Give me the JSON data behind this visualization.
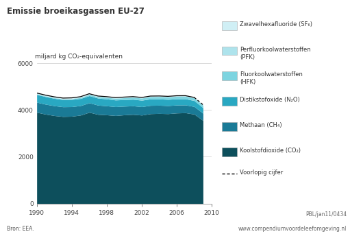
{
  "title": "Emissie broeikasgassen EU-27",
  "ylabel": "miljard kg CO₂-equivalenten",
  "source": "Bron: EEA.",
  "reference": "PBL/jan11/0434",
  "website": "www.compendiumvoordeleefomgeving.nl",
  "years": [
    1990,
    1991,
    1992,
    1993,
    1994,
    1995,
    1996,
    1997,
    1998,
    1999,
    2000,
    2001,
    2002,
    2003,
    2004,
    2005,
    2006,
    2007,
    2008,
    2009
  ],
  "CO2": [
    3900,
    3820,
    3760,
    3720,
    3730,
    3780,
    3900,
    3810,
    3790,
    3760,
    3790,
    3810,
    3780,
    3840,
    3850,
    3840,
    3870,
    3880,
    3820,
    3550
  ],
  "CH4": [
    430,
    425,
    420,
    415,
    410,
    405,
    405,
    395,
    385,
    380,
    370,
    365,
    360,
    355,
    350,
    345,
    340,
    335,
    325,
    310
  ],
  "N2O": [
    330,
    325,
    315,
    305,
    305,
    305,
    305,
    300,
    295,
    285,
    280,
    280,
    275,
    275,
    270,
    265,
    265,
    260,
    255,
    235
  ],
  "HFK": [
    20,
    22,
    26,
    30,
    35,
    42,
    50,
    58,
    67,
    75,
    82,
    88,
    93,
    98,
    103,
    107,
    110,
    112,
    112,
    108
  ],
  "PFK": [
    25,
    24,
    23,
    22,
    21,
    20,
    19,
    18,
    17,
    16,
    16,
    15,
    15,
    14,
    14,
    14,
    13,
    13,
    13,
    12
  ],
  "SF6": [
    20,
    19,
    18,
    17,
    17,
    16,
    16,
    15,
    15,
    14,
    14,
    13,
    13,
    13,
    12,
    12,
    11,
    11,
    11,
    10
  ],
  "colors": {
    "CO2": "#0d4f5c",
    "CH4": "#1a7a96",
    "N2O": "#29a8c2",
    "HFK": "#7dd4e0",
    "PFK": "#aee3ec",
    "SF6": "#d0eff5"
  },
  "ylim": [
    0,
    6000
  ],
  "yticks": [
    0,
    2000,
    4000,
    6000
  ],
  "xticks": [
    1990,
    1994,
    1998,
    2002,
    2006,
    2010
  ],
  "background_color": "#ffffff",
  "title_color": "#333333",
  "text_color": "#333333",
  "legend_labels": {
    "SF6": "Zwavelhexafluoride (SF₆)",
    "PFK": "Perfluorkoolwaterstoffen\n(PFK)",
    "HFK": "Fluorkoolwaterstoffen\n(HFK)",
    "N2O": "Distikstofoxide (N₂O)",
    "CH4": "Methaan (CH₄)",
    "CO2": "Koolstofdioxide (CO₂)"
  },
  "voorlopig_label": "Voorlopig cijfer"
}
